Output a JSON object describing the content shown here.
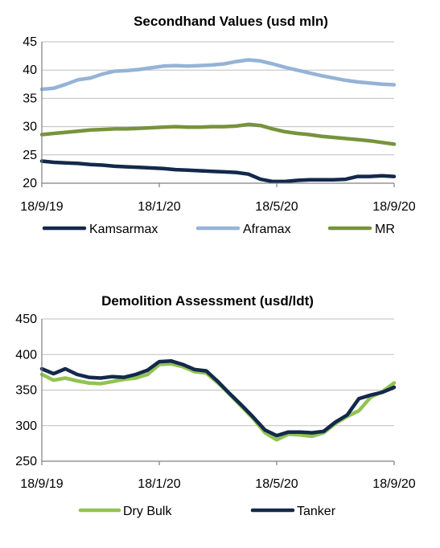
{
  "chart_data": [
    {
      "type": "line",
      "title": "Secondhand Values (usd mln)",
      "x_ticks": [
        "18/9/19",
        "18/1/20",
        "18/5/20",
        "18/9/20"
      ],
      "ylim": [
        20,
        45
      ],
      "y_ticks": [
        20,
        25,
        30,
        35,
        40,
        45
      ],
      "grid": true,
      "legend_position": "bottom",
      "series": [
        {
          "name": "Kamsarmax",
          "color": "#13294b",
          "values": [
            23.9,
            23.7,
            23.6,
            23.5,
            23.3,
            23.2,
            23.0,
            22.9,
            22.8,
            22.7,
            22.6,
            22.4,
            22.3,
            22.2,
            22.1,
            22.0,
            21.9,
            21.6,
            20.7,
            20.3,
            20.3,
            20.5,
            20.6,
            20.6,
            20.6,
            20.7,
            21.2,
            21.2,
            21.3,
            21.2
          ]
        },
        {
          "name": "Aframax",
          "color": "#95b3d7",
          "values": [
            36.6,
            36.8,
            37.5,
            38.3,
            38.6,
            39.3,
            39.8,
            39.9,
            40.1,
            40.4,
            40.7,
            40.8,
            40.7,
            40.8,
            40.9,
            41.1,
            41.5,
            41.8,
            41.6,
            41.1,
            40.5,
            40.0,
            39.5,
            39.0,
            38.6,
            38.2,
            37.9,
            37.7,
            37.5,
            37.4
          ]
        },
        {
          "name": "MR",
          "color": "#77933c",
          "values": [
            28.6,
            28.8,
            29.0,
            29.2,
            29.4,
            29.5,
            29.6,
            29.6,
            29.7,
            29.8,
            29.9,
            30.0,
            29.9,
            29.9,
            30.0,
            30.0,
            30.1,
            30.4,
            30.2,
            29.6,
            29.1,
            28.8,
            28.6,
            28.3,
            28.1,
            27.9,
            27.7,
            27.5,
            27.2,
            26.9
          ]
        }
      ]
    },
    {
      "type": "line",
      "title": "Demolition Assessment (usd/ldt)",
      "x_ticks": [
        "18/9/19",
        "18/1/20",
        "18/5/20",
        "18/9/20"
      ],
      "ylim": [
        250,
        450
      ],
      "y_ticks": [
        250,
        300,
        350,
        400,
        450
      ],
      "grid": true,
      "legend_position": "bottom",
      "series": [
        {
          "name": "Dry Bulk",
          "color": "#92c353",
          "values": [
            372,
            364,
            367,
            363,
            360,
            359,
            362,
            365,
            367,
            372,
            386,
            387,
            383,
            376,
            374,
            360,
            344,
            327,
            310,
            290,
            280,
            288,
            287,
            285,
            290,
            303,
            313,
            321,
            340,
            348,
            360
          ]
        },
        {
          "name": "Tanker",
          "color": "#13294b",
          "values": [
            380,
            373,
            380,
            372,
            368,
            367,
            369,
            368,
            372,
            378,
            390,
            391,
            386,
            379,
            377,
            362,
            345,
            329,
            312,
            294,
            286,
            291,
            291,
            290,
            292,
            305,
            315,
            338,
            343,
            347,
            354
          ]
        }
      ]
    }
  ]
}
